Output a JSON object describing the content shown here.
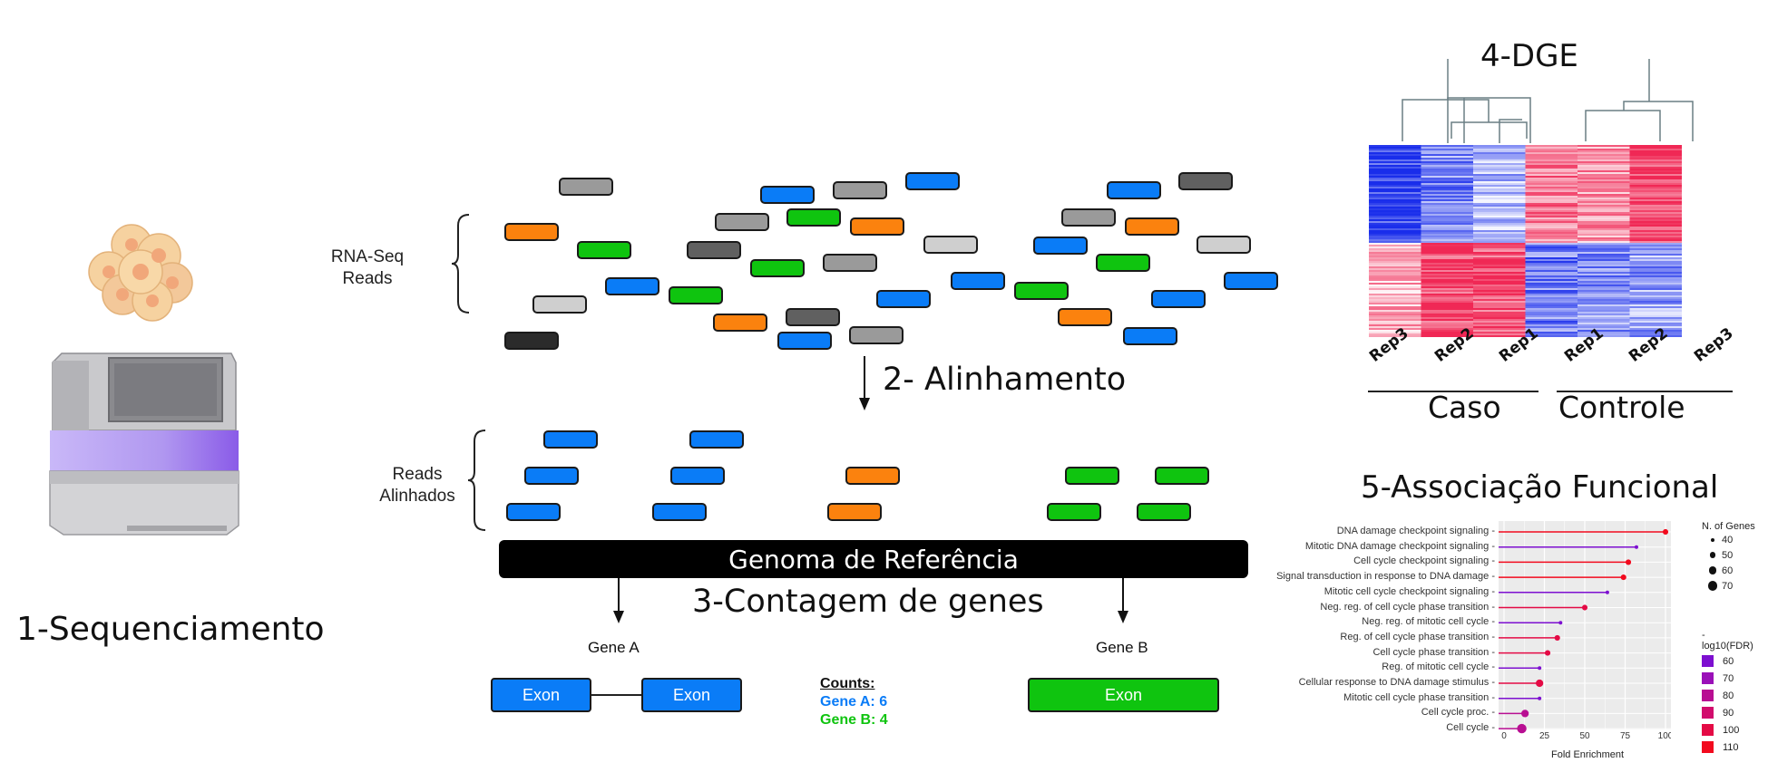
{
  "steps": {
    "step1": "1-Sequenciamento",
    "step2": "2- Alinhamento",
    "step3": "3-Contagem de genes",
    "step4": "4-DGE",
    "step5": "5-Associação Funcional"
  },
  "labels": {
    "rnaseq_reads_1": "RNA-Seq",
    "rnaseq_reads_2": "Reads",
    "aligned_1": "Reads",
    "aligned_2": "Alinhados",
    "genome": "Genoma de Referência",
    "gene_a": "Gene A",
    "gene_b": "Gene B",
    "exon": "Exon"
  },
  "counts": {
    "title": "Counts:",
    "gene_a": "Gene A: 6",
    "gene_b": "Gene B: 4"
  },
  "colors": {
    "blue": "#0a7cf7",
    "orange": "#fb820e",
    "green": "#0fc40f",
    "gray": "#9a9a9a",
    "lightgray": "#cfcfcf",
    "darkgray": "#606060",
    "black": "#2b2b2b"
  },
  "heatmap": {
    "samples": [
      "Rep3",
      "Rep2",
      "Rep1",
      "Rep1",
      "Rep2",
      "Rep3"
    ],
    "group_caso": "Caso",
    "group_controle": "Controle"
  },
  "chart_data": {
    "type": "scatter",
    "title": "",
    "xlabel": "Fold Enrichment",
    "ylabel": "",
    "xlim": [
      0,
      100
    ],
    "xticks": [
      "0",
      "25",
      "50",
      "75",
      "100"
    ],
    "categories": [
      "DNA damage checkpoint signaling",
      "Mitotic DNA damage checkpoint signaling",
      "Cell cycle checkpoint signaling",
      "Signal transduction in response to DNA damage",
      "Mitotic cell cycle checkpoint signaling",
      "Neg. reg. of cell cycle phase transition",
      "Neg. reg. of mitotic cell cycle",
      "Reg. of cell cycle phase transition",
      "Cell cycle phase transition",
      "Reg. of mitotic cell cycle",
      "Cellular response to DNA damage stimulus",
      "Mitotic cell cycle phase transition",
      "Cell cycle proc.",
      "Cell cycle"
    ],
    "fold_enrichment": [
      100,
      82,
      77,
      74,
      64,
      50,
      35,
      33,
      27,
      22,
      22,
      22,
      13,
      11
    ],
    "n_genes": [
      50,
      40,
      50,
      50,
      40,
      50,
      40,
      50,
      50,
      40,
      60,
      40,
      60,
      70
    ],
    "neg_log10_fdr": [
      110,
      65,
      110,
      110,
      65,
      100,
      55,
      100,
      100,
      60,
      105,
      60,
      80,
      80
    ],
    "size_legend_title": "N. of Genes",
    "size_legend": [
      "40",
      "50",
      "60",
      "70"
    ],
    "color_legend_title": "-log10(FDR)",
    "color_legend": [
      "60",
      "70",
      "80",
      "90",
      "100",
      "110"
    ],
    "color_legend_colors": [
      "#7d0fd0",
      "#9a10b8",
      "#b80e92",
      "#d10c6d",
      "#e40a45",
      "#f20a1e"
    ],
    "legend_position": "right"
  }
}
